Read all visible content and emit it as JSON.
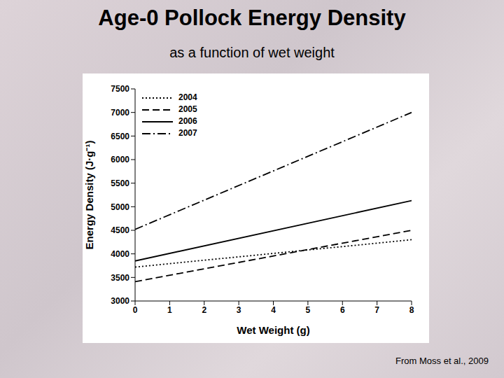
{
  "chart_data": {
    "type": "line",
    "title": "Age-0 Pollock Energy Density",
    "subtitle": "as a function of wet weight",
    "x_label": "Wet Weight (g)",
    "y_label": "Energy Density (J·g⁻¹)",
    "annotation": "From Moss et al., 2009",
    "x": [
      0,
      8
    ],
    "series": [
      {
        "name": "2004",
        "color": "#000000",
        "line_style": "dotted",
        "values": [
          3720,
          4300
        ]
      },
      {
        "name": "2005",
        "color": "#000000",
        "line_style": "dashed",
        "values": [
          3410,
          4500
        ]
      },
      {
        "name": "2006",
        "color": "#000000",
        "line_style": "solid",
        "values": [
          3850,
          5130
        ]
      },
      {
        "name": "2007",
        "color": "#000000",
        "line_style": "dashdot",
        "values": [
          4520,
          7000
        ]
      }
    ],
    "xlim": [
      0,
      8
    ],
    "xticks": [
      0,
      1,
      2,
      3,
      4,
      5,
      6,
      7,
      8
    ],
    "ylim": [
      3000,
      7500
    ],
    "yticks": [
      3000,
      3500,
      4000,
      4500,
      5000,
      5500,
      6000,
      6500,
      7000,
      7500
    ],
    "grid": false,
    "legend": "upper left"
  }
}
